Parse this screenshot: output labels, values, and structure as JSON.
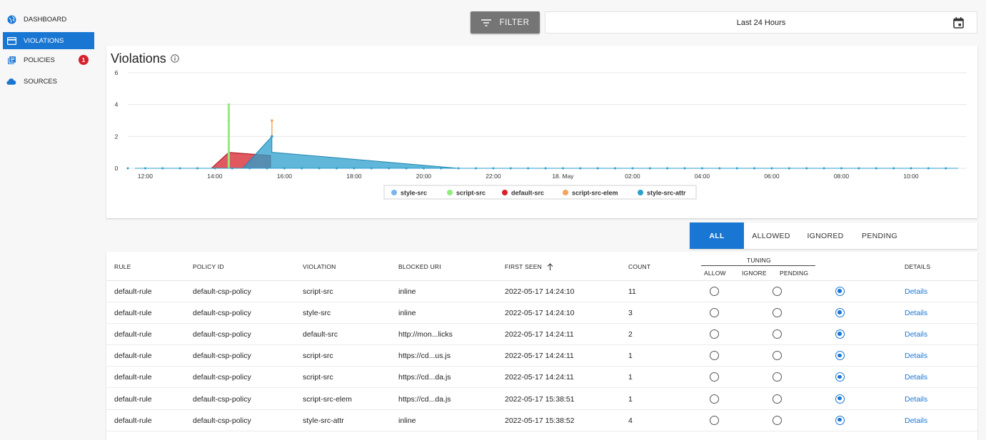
{
  "sidebar": {
    "items": [
      {
        "label": "DASHBOARD",
        "icon": "globe-icon",
        "active": false
      },
      {
        "label": "VIOLATIONS",
        "icon": "credit-card-icon",
        "active": true
      },
      {
        "label": "POLICIES",
        "icon": "library-books-icon",
        "active": false,
        "badge": "1"
      },
      {
        "label": "SOURCES",
        "icon": "cloud-icon",
        "active": false
      }
    ]
  },
  "toolbar": {
    "filter_label": "FILTER",
    "date_range": "Last 24 Hours"
  },
  "chart_title": "Violations",
  "chart_data": {
    "type": "area",
    "title": "Violations",
    "yticks": [
      0,
      2,
      4,
      6
    ],
    "ylim": [
      0,
      6
    ],
    "xticks": [
      "12:00",
      "14:00",
      "16:00",
      "18:00",
      "20:00",
      "22:00",
      "18. May",
      "02:00",
      "04:00",
      "06:00",
      "08:00",
      "10:00"
    ],
    "x_range_hours": [
      11.5,
      35.6
    ],
    "grid": true,
    "legend_position": "bottom",
    "series": [
      {
        "name": "style-src",
        "color": "#7cb5ec",
        "points": [
          [
            14.4,
            3
          ]
        ]
      },
      {
        "name": "script-src",
        "color": "#90ed7d",
        "points": [
          [
            14.4,
            4
          ],
          [
            14.4,
            3
          ]
        ]
      },
      {
        "name": "default-src",
        "color": "#d6202b",
        "points": [
          [
            13.9,
            0
          ],
          [
            14.4,
            1
          ],
          [
            15.6,
            0.8
          ]
        ]
      },
      {
        "name": "script-src-elem",
        "color": "#f7a35c",
        "points": [
          [
            15.64,
            3
          ]
        ]
      },
      {
        "name": "style-src-attr",
        "color": "#2b9fce",
        "points": [
          [
            14.8,
            0
          ],
          [
            15.64,
            2
          ],
          [
            15.7,
            1
          ],
          [
            21.0,
            0
          ]
        ]
      }
    ]
  },
  "tabs": [
    {
      "label": "ALL",
      "active": true
    },
    {
      "label": "ALLOWED",
      "active": false
    },
    {
      "label": "IGNORED",
      "active": false
    },
    {
      "label": "PENDING",
      "active": false
    }
  ],
  "table": {
    "headers": {
      "rule": "RULE",
      "policy_id": "POLICY ID",
      "violation": "VIOLATION",
      "blocked_uri": "BLOCKED URI",
      "first_seen": "FIRST SEEN",
      "count": "COUNT",
      "tuning": "TUNING",
      "allow": "ALLOW",
      "ignore": "IGNORE",
      "pending": "PENDING",
      "details": "DETAILS"
    },
    "rows": [
      {
        "rule": "default-rule",
        "policy_id": "default-csp-policy",
        "violation": "script-src",
        "blocked_uri": "inline",
        "first_seen": "2022-05-17 14:24:10",
        "count": "11",
        "tuning": "pending",
        "details": "Details"
      },
      {
        "rule": "default-rule",
        "policy_id": "default-csp-policy",
        "violation": "style-src",
        "blocked_uri": "inline",
        "first_seen": "2022-05-17 14:24:10",
        "count": "3",
        "tuning": "pending",
        "details": "Details"
      },
      {
        "rule": "default-rule",
        "policy_id": "default-csp-policy",
        "violation": "default-src",
        "blocked_uri": "http://mon...licks",
        "first_seen": "2022-05-17 14:24:11",
        "count": "2",
        "tuning": "pending",
        "details": "Details"
      },
      {
        "rule": "default-rule",
        "policy_id": "default-csp-policy",
        "violation": "script-src",
        "blocked_uri": "https://cd...us.js",
        "first_seen": "2022-05-17 14:24:11",
        "count": "1",
        "tuning": "pending",
        "details": "Details"
      },
      {
        "rule": "default-rule",
        "policy_id": "default-csp-policy",
        "violation": "script-src",
        "blocked_uri": "https://cd...da.js",
        "first_seen": "2022-05-17 14:24:11",
        "count": "1",
        "tuning": "pending",
        "details": "Details"
      },
      {
        "rule": "default-rule",
        "policy_id": "default-csp-policy",
        "violation": "script-src-elem",
        "blocked_uri": "https://cd...da.js",
        "first_seen": "2022-05-17 15:38:51",
        "count": "1",
        "tuning": "pending",
        "details": "Details"
      },
      {
        "rule": "default-rule",
        "policy_id": "default-csp-policy",
        "violation": "style-src-attr",
        "blocked_uri": "inline",
        "first_seen": "2022-05-17 15:38:52",
        "count": "4",
        "tuning": "pending",
        "details": "Details"
      }
    ]
  },
  "colors": {
    "accent": "#1976d2",
    "badge": "#d6202b",
    "filter_button": "#757575"
  }
}
